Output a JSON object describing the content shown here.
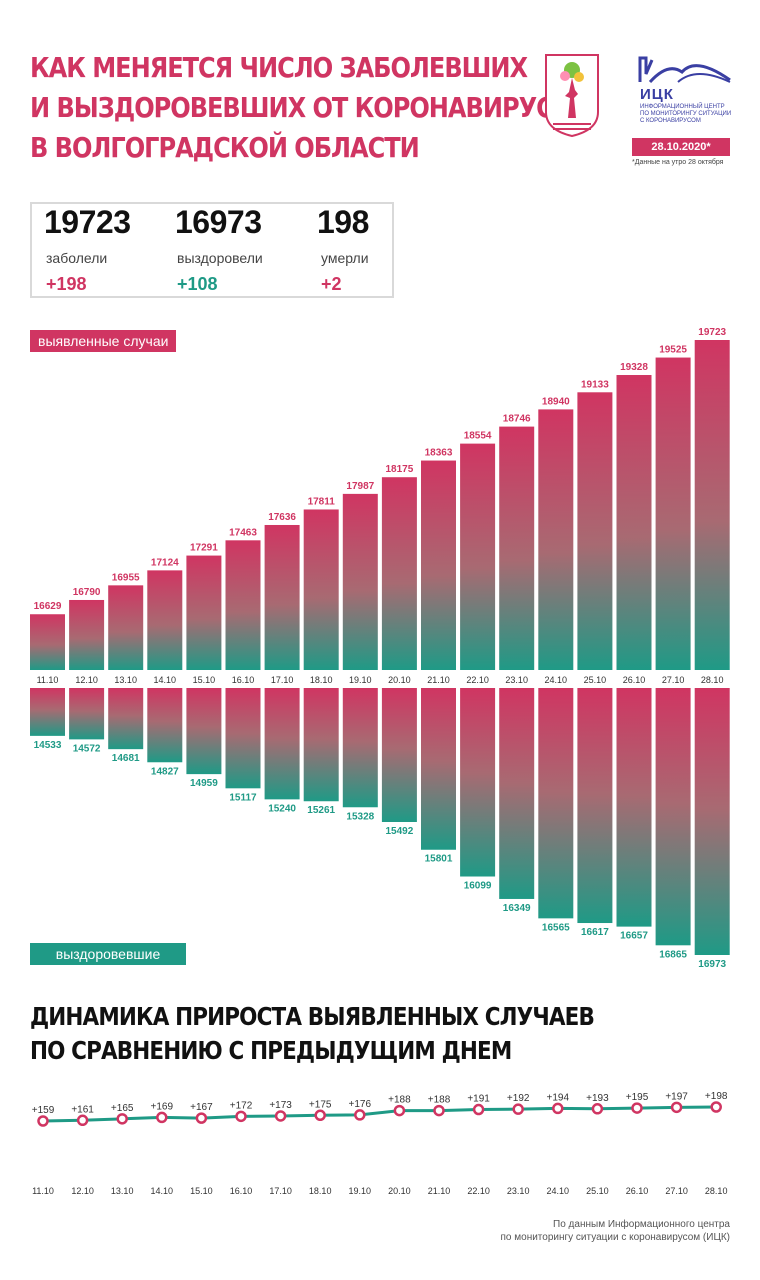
{
  "header": {
    "title_lines": [
      "КАК МЕНЯЕТСЯ ЧИСЛО ЗАБОЛЕВШИХ",
      "И ВЫЗДОРОВЕВШИХ ОТ КОРОНАВИРУСА",
      "В ВОЛГОГРАДСКОЙ ОБЛАСТИ"
    ],
    "logo_name": "ИЦК",
    "logo_sub_lines": [
      "ИНФОРМАЦИОННЫЙ ЦЕНТР",
      "ПО МОНИТОРИНГУ СИТУАЦИИ",
      "С КОРОНАВИРУСОМ"
    ],
    "date_badge": "28.10.2020*",
    "date_note": "*Данные на утро 28 октября"
  },
  "stats": {
    "cases": {
      "value": "19723",
      "label": "заболели",
      "delta": "+198"
    },
    "recovered": {
      "value": "16973",
      "label": "выздоровели",
      "delta": "+108"
    },
    "deaths": {
      "value": "198",
      "label": "умерли",
      "delta": "+2"
    }
  },
  "colors": {
    "pink": "#d03562",
    "green": "#1f9a86"
  },
  "chart_data": [
    {
      "type": "bar",
      "categories": [
        "11.10",
        "12.10",
        "13.10",
        "14.10",
        "15.10",
        "16.10",
        "17.10",
        "18.10",
        "19.10",
        "20.10",
        "21.10",
        "22.10",
        "23.10",
        "24.10",
        "25.10",
        "26.10",
        "27.10",
        "28.10"
      ],
      "series": [
        {
          "name": "выявленные случаи",
          "values": [
            16629,
            16790,
            16955,
            17124,
            17291,
            17463,
            17636,
            17811,
            17987,
            18175,
            18363,
            18554,
            18746,
            18940,
            19133,
            19328,
            19525,
            19723
          ]
        },
        {
          "name": "выздоровевшие",
          "values": [
            14533,
            14572,
            14681,
            14827,
            14959,
            15117,
            15240,
            15261,
            15328,
            15492,
            15801,
            16099,
            16349,
            16565,
            16617,
            16657,
            16865,
            16973
          ]
        }
      ]
    },
    {
      "type": "line",
      "title_lines": [
        "ДИНАМИКА ПРИРОСТА ВЫЯВЛЕННЫХ СЛУЧАЕВ",
        "ПО СРАВНЕНИЮ С ПРЕДЫДУЩИМ ДНЕМ"
      ],
      "categories": [
        "11.10",
        "12.10",
        "13.10",
        "14.10",
        "15.10",
        "16.10",
        "17.10",
        "18.10",
        "19.10",
        "20.10",
        "21.10",
        "22.10",
        "23.10",
        "24.10",
        "25.10",
        "26.10",
        "27.10",
        "28.10"
      ],
      "values": [
        159,
        161,
        165,
        169,
        167,
        172,
        173,
        175,
        176,
        188,
        188,
        191,
        192,
        194,
        193,
        195,
        197,
        198
      ],
      "labels": [
        "+159",
        "+161",
        "+165",
        "+169",
        "+167",
        "+172",
        "+173",
        "+175",
        "+176",
        "+188",
        "+188",
        "+191",
        "+192",
        "+194",
        "+193",
        "+195",
        "+197",
        "+198"
      ]
    }
  ],
  "source_lines": [
    "По данным Информационного центра",
    "по мониторингу ситуации с коронавирусом (ИЦК)"
  ]
}
